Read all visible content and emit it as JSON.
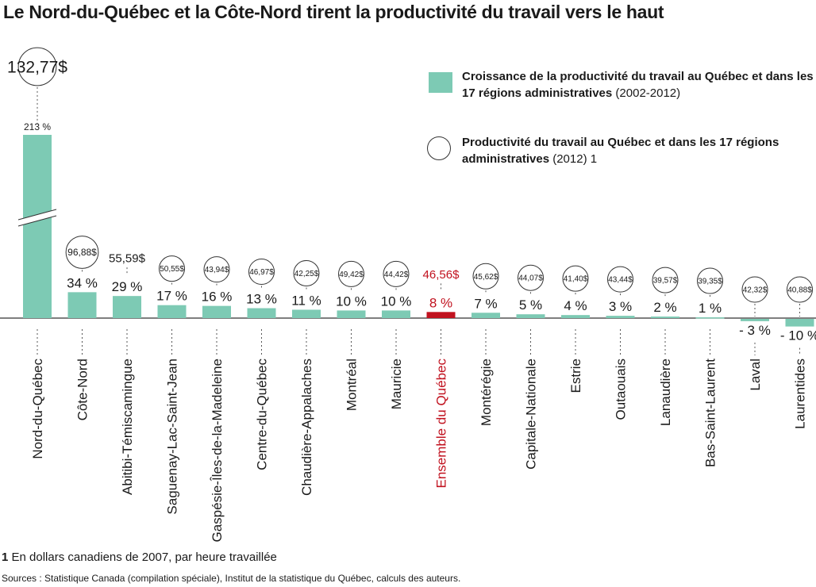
{
  "header": {
    "title": "Le Nord-du-Québec et la Côte-Nord tirent la productivité du travail vers le haut"
  },
  "legend": {
    "growth_label": "Croissance de la productivité du travail au Québec et dans les 17 régions administratives",
    "growth_period": "(2002-2012)",
    "productivity_label": "Productivité du travail au Québec et dans les 17 régions administratives",
    "productivity_period": "(2012)",
    "productivity_note_ref": "1"
  },
  "footer": {
    "note_number": "1",
    "note_text": "En dollars canadiens de 2007, par heure travaillée",
    "sources": "Sources : Statistique Canada (compilation spéciale), Institut de la statistique du Québec, calculs des auteurs."
  },
  "colors": {
    "bar": "#7dcab4",
    "highlight": "#c1121f",
    "text": "#1a1a1a",
    "axis": "#333333"
  },
  "chart_data": {
    "type": "bar",
    "title": "Le Nord-du-Québec et la Côte-Nord tirent la productivité du travail vers le haut",
    "axis_break": "Nord-du-Québec",
    "categories": [
      "Nord-du-Québec",
      "Côte-Nord",
      "Abitibi-Témiscamingue",
      "Saguenay-Lac-Saint-Jean",
      "Gaspésie-Îles-de-la-Madeleine",
      "Centre-du-Québec",
      "Chaudière-Appalaches",
      "Montréal",
      "Mauricie",
      "Ensemble du Québec",
      "Montérégie",
      "Capitale-Nationale",
      "Estrie",
      "Outaouais",
      "Lanaudière",
      "Bas-Saint-Laurent",
      "Laval",
      "Laurentides"
    ],
    "highlight": "Ensemble du Québec",
    "series": [
      {
        "name": "Croissance de la productivité du travail au Québec et dans les 17 régions administratives (2002-2012)",
        "values": [
          213,
          34,
          29,
          17,
          16,
          13,
          11,
          10,
          10,
          8,
          7,
          5,
          4,
          3,
          2,
          1,
          -3,
          -10
        ],
        "labels": [
          "213 %",
          "34 %",
          "29 %",
          "17 %",
          "16 %",
          "13 %",
          "11 %",
          "10 %",
          "10 %",
          "8 %",
          "7 %",
          "5 %",
          "4 %",
          "3 %",
          "2 %",
          "1 %",
          "- 3 %",
          "- 10 %"
        ]
      },
      {
        "name": "Productivité du travail au Québec et dans les 17 régions administratives (2012) 1",
        "values": [
          132.77,
          96.88,
          55.59,
          50.55,
          43.94,
          46.97,
          42.25,
          49.42,
          44.42,
          46.56,
          45.62,
          44.07,
          41.4,
          43.44,
          39.57,
          39.35,
          42.32,
          40.88
        ],
        "labels": [
          "132,77$",
          "96,88$",
          "55,59$",
          "50,55$",
          "43,94$",
          "46,97$",
          "42,25$",
          "49,42$",
          "44,42$",
          "46,56$",
          "45,62$",
          "44,07$",
          "41,40$",
          "43,44$",
          "39,57$",
          "39,35$",
          "42,32$",
          "40,88$"
        ]
      }
    ]
  }
}
